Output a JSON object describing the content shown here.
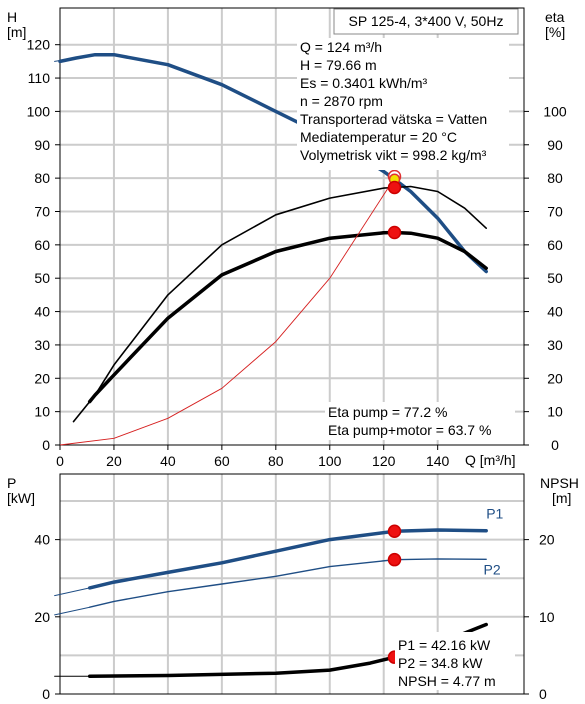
{
  "chart_data": [
    {
      "type": "line",
      "panel": "top",
      "title": "SP 125-4, 3*400 V, 50Hz",
      "xlabel": "Q [m³/h]",
      "ylabel_left": [
        "H",
        "[m]"
      ],
      "ylabel_right": [
        "eta",
        "[%]"
      ],
      "x_ticks": [
        "0",
        "20",
        "40",
        "60",
        "80",
        "100",
        "120",
        "140"
      ],
      "y_ticks_left": [
        "0",
        "10",
        "20",
        "30",
        "40",
        "50",
        "60",
        "70",
        "80",
        "90",
        "100",
        "110",
        "120"
      ],
      "y_ticks_right": [
        "0",
        "10",
        "20",
        "30",
        "40",
        "50",
        "60",
        "70",
        "80",
        "90",
        "100"
      ],
      "xlim": [
        0,
        172
      ],
      "ylim_left": [
        0,
        131
      ],
      "ylim_right": [
        0,
        131
      ],
      "grid": true,
      "info_lines": [
        "Q = 124 m³/h",
        "H = 79.66 m",
        "Es = 0.3401 kWh/m³",
        "n = 2870 rpm",
        "Transporterad vätska = Vatten",
        "Mediatemperatur = 20 °C",
        "Volymetrisk vikt = 998.2 kg/m³"
      ],
      "eta_lines": [
        "Eta pump = 77.2 %",
        "Eta pump+motor = 63.7 %"
      ],
      "series": [
        {
          "key": "H",
          "color": "#1f4e85",
          "width": 3.5,
          "x": [
            0,
            6,
            13,
            20,
            40,
            60,
            80,
            100,
            120,
            124,
            130,
            140,
            150,
            158
          ],
          "y": [
            115,
            116,
            117,
            117,
            114,
            108,
            100,
            92,
            82,
            79.66,
            76,
            68,
            58,
            52
          ]
        },
        {
          "key": "H-ext",
          "color": "#1f4e85",
          "width": 1,
          "x": [
            -2,
            6,
            13
          ],
          "y": [
            115,
            116,
            117
          ]
        },
        {
          "key": "eta-pump",
          "color": "#000000",
          "width": 1.6,
          "x": [
            5,
            13,
            20,
            40,
            60,
            80,
            100,
            120,
            124,
            130,
            140,
            150,
            158
          ],
          "y": [
            7,
            15,
            24,
            45,
            60,
            69,
            74,
            77,
            77.2,
            77.5,
            76,
            71,
            65
          ]
        },
        {
          "key": "eta-total",
          "color": "#000000",
          "width": 3.5,
          "x": [
            11,
            13,
            20,
            40,
            60,
            80,
            100,
            120,
            124,
            130,
            140,
            150,
            158
          ],
          "y": [
            13,
            15,
            21,
            38,
            51,
            58,
            62,
            63.6,
            63.7,
            63.5,
            62,
            58,
            53
          ]
        },
        {
          "key": "eta-ext",
          "color": "#000000",
          "width": 1,
          "x": [
            5,
            8,
            11
          ],
          "y": [
            7,
            10,
            13
          ]
        },
        {
          "key": "system",
          "color": "#d62020",
          "width": 0.9,
          "x": [
            0,
            20,
            40,
            60,
            80,
            100,
            124
          ],
          "y": [
            0,
            2,
            8,
            17,
            31,
            50,
            80
          ]
        }
      ],
      "markers": [
        {
          "x": 124,
          "y": 80.5,
          "color": "#ffffff",
          "stroke": "#e03030",
          "r": 6
        },
        {
          "x": 124,
          "y": 79.66,
          "color": "#f2e000",
          "stroke": "#e03030",
          "r": 5
        },
        {
          "x": 124,
          "y": 77.2,
          "color": "#ee1111",
          "stroke": "#cc0000",
          "r": 6
        },
        {
          "x": 124,
          "y": 63.7,
          "color": "#ee1111",
          "stroke": "#cc0000",
          "r": 6
        }
      ]
    },
    {
      "type": "line",
      "panel": "bottom",
      "ylabel_left": [
        "P",
        "[kW]"
      ],
      "ylabel_right": [
        "NPSH",
        "[m]"
      ],
      "xlim": [
        0,
        172
      ],
      "ylim_left": [
        0,
        57
      ],
      "ylim_right": [
        0,
        28.5
      ],
      "y_ticks_left": [
        "0",
        "20",
        "40"
      ],
      "y_ticks_right": [
        "0",
        "10",
        "20"
      ],
      "grid": true,
      "series": [
        {
          "key": "P1",
          "name": "P1",
          "color": "#1f4e85",
          "width": 3.5,
          "x": [
            11,
            20,
            40,
            60,
            80,
            100,
            124,
            140,
            158
          ],
          "y": [
            27.5,
            29,
            31.5,
            34,
            37,
            40,
            42.16,
            42.5,
            42.3
          ]
        },
        {
          "key": "P1-ext",
          "color": "#1f4e85",
          "width": 1,
          "x": [
            -2,
            11
          ],
          "y": [
            25.5,
            27.5
          ]
        },
        {
          "key": "P2",
          "name": "P2",
          "color": "#1f4e85",
          "width": 1.4,
          "x": [
            11,
            20,
            40,
            60,
            80,
            100,
            124,
            140,
            158
          ],
          "y": [
            22.5,
            24,
            26.5,
            28.5,
            30.5,
            33,
            34.8,
            35,
            34.9
          ]
        },
        {
          "key": "P2-ext",
          "color": "#1f4e85",
          "width": 1,
          "x": [
            -2,
            11
          ],
          "y": [
            20.5,
            22.5
          ]
        },
        {
          "key": "NPSH",
          "color": "#000000",
          "width": 3.5,
          "x": [
            11,
            40,
            80,
            100,
            115,
            124,
            140,
            158
          ],
          "y": [
            2.3,
            2.4,
            2.7,
            3.1,
            4,
            4.77,
            6.5,
            9
          ]
        },
        {
          "key": "NPSH-ext",
          "color": "#000000",
          "width": 1,
          "x": [
            -2,
            11
          ],
          "y": [
            2.3,
            2.3
          ]
        }
      ],
      "series_labels": [
        {
          "text": "P1",
          "x": 158,
          "y": 45.5
        },
        {
          "text": "P2",
          "x": 157,
          "y": 31
        }
      ],
      "markers": [
        {
          "x": 124,
          "y": 42.16,
          "axis": "left"
        },
        {
          "x": 124,
          "y": 34.8,
          "axis": "left"
        },
        {
          "x": 124,
          "y": 4.77,
          "axis": "right"
        }
      ],
      "info_lines": [
        "P1 = 42.16 kW",
        "P2 = 34.8 kW",
        "NPSH = 4.77 m"
      ]
    }
  ]
}
